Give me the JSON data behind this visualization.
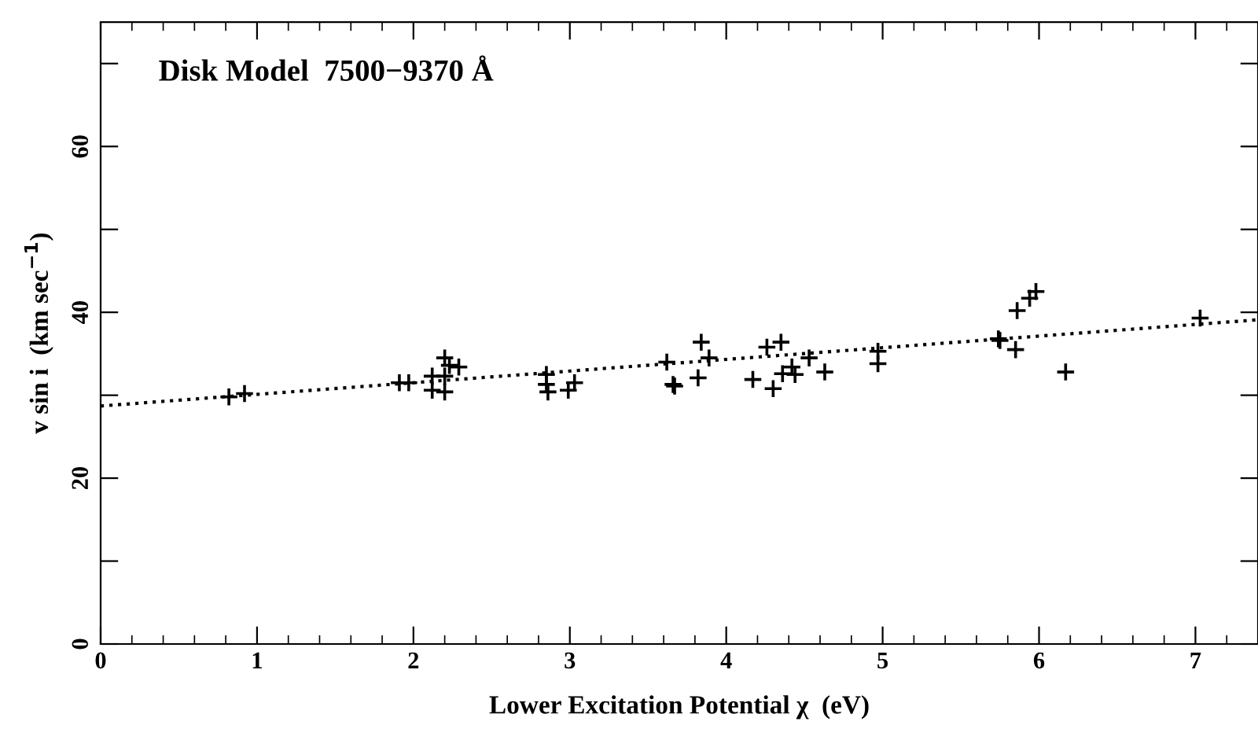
{
  "chart_data": {
    "type": "scatter",
    "xlabel": "Lower Excitation Potential χ  (eV)",
    "ylabel": "v sin i  (km sec$^{−1}$)",
    "annotations": [
      "Disk Model  7500−9370 Å"
    ],
    "xlim": [
      0,
      7.4
    ],
    "ylim": [
      0,
      75
    ],
    "xticks": [
      0,
      1,
      2,
      3,
      4,
      5,
      6,
      7
    ],
    "yticks": [
      0,
      {
        "value": 10,
        "label": null
      },
      20,
      {
        "value": 30,
        "label": null
      },
      40,
      {
        "value": 50,
        "label": null
      },
      60,
      {
        "value": 70,
        "label": null
      }
    ],
    "grid": false,
    "legend": false,
    "series": [
      {
        "color": "#000000",
        "marker": "cross",
        "x": [
          0.82,
          0.92,
          1.91,
          1.97,
          2.12,
          2.12,
          2.2,
          2.2,
          2.2,
          2.23,
          2.29,
          2.85,
          2.85,
          2.86,
          2.99,
          3.03,
          3.62,
          3.66,
          3.67,
          3.84,
          3.82,
          3.89,
          4.17,
          4.26,
          4.35,
          4.3,
          4.36,
          4.42,
          4.44,
          4.53,
          4.63,
          4.97,
          4.97,
          5.74,
          5.75,
          5.85,
          5.86,
          5.94,
          5.98,
          6.17,
          7.03
        ],
        "values": [
          29.8,
          30.2,
          31.5,
          31.5,
          32.3,
          30.6,
          32.3,
          30.4,
          34.5,
          33.6,
          33.4,
          32.5,
          31.3,
          30.4,
          30.6,
          31.5,
          34.0,
          31.3,
          31.1,
          36.4,
          32.1,
          34.5,
          31.9,
          35.8,
          36.4,
          30.8,
          32.6,
          33.4,
          32.5,
          34.5,
          32.8,
          35.3,
          33.8,
          36.8,
          36.6,
          35.5,
          40.2,
          41.7,
          42.5,
          32.8,
          39.3
        ]
      },
      {
        "type": "line",
        "color": "#000000",
        "line_style": "dotted",
        "marker": "none",
        "x": [
          0,
          7.4
        ],
        "values": [
          28.7,
          39.1
        ]
      }
    ]
  }
}
